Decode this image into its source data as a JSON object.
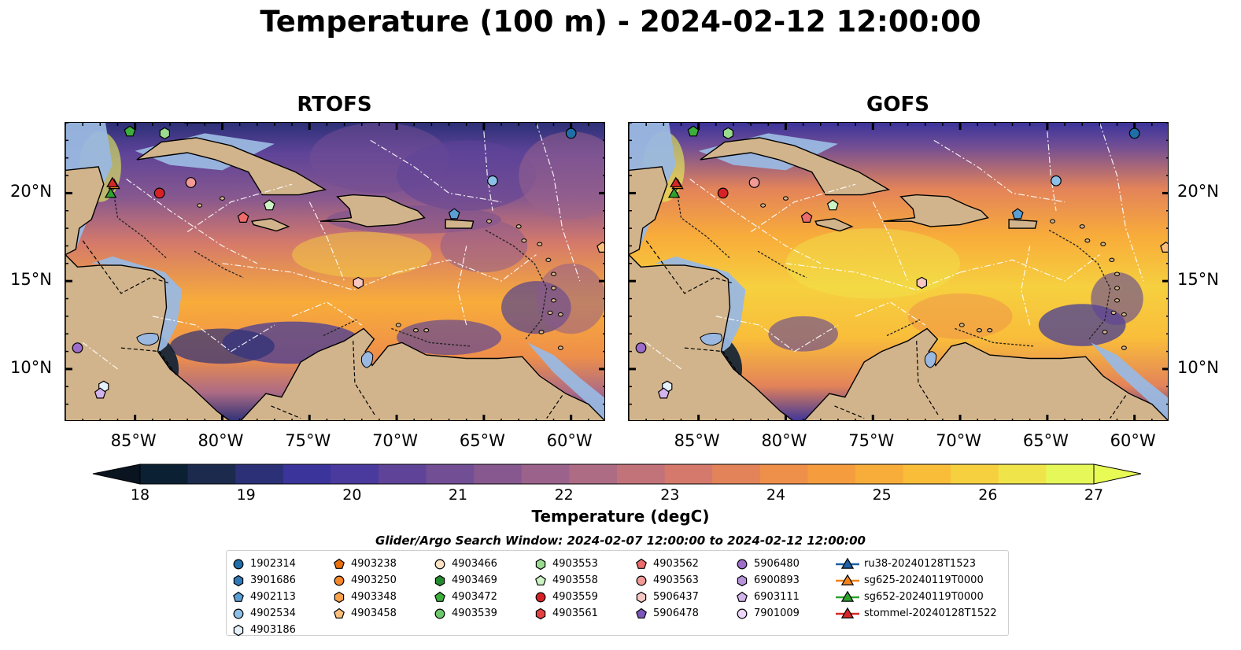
{
  "page": {
    "title": "Temperature (100 m) - 2024-02-12 12:00:00",
    "search_window": "Glider/Argo Search Window: 2024-02-07 12:00:00 to 2024-02-12 12:00:00"
  },
  "chart_data": {
    "type": "heatmap",
    "title": "Temperature (100 m) - 2024-02-12 12:00:00",
    "panels": [
      {
        "name": "RTOFS"
      },
      {
        "name": "GOFS"
      }
    ],
    "x_ticks": [
      "85°W",
      "80°W",
      "75°W",
      "70°W",
      "65°W",
      "60°W"
    ],
    "x_tick_values": [
      -85,
      -80,
      -75,
      -70,
      -65,
      -60
    ],
    "y_ticks": [
      "20°N",
      "15°N",
      "10°N"
    ],
    "y_tick_values": [
      20,
      15,
      10
    ],
    "xlim": [
      -89,
      -58
    ],
    "ylim": [
      7,
      24
    ],
    "colorbar": {
      "label": "Temperature (degC)",
      "vmin": 18,
      "vmax": 27,
      "step": 0.5,
      "ticks": [
        18,
        19,
        20,
        21,
        22,
        23,
        24,
        25,
        26,
        27
      ],
      "extend": "both",
      "colors": [
        "#0c2034",
        "#1c2a4e",
        "#2c3077",
        "#3b349b",
        "#4b3a9e",
        "#5e4398",
        "#724e94",
        "#87588f",
        "#9b638b",
        "#ae6c84",
        "#c27279",
        "#d4796b",
        "#e3835a",
        "#ee8f4a",
        "#f59d3e",
        "#f8ac3a",
        "#f9bd3a",
        "#f6d03f",
        "#f0e44b",
        "#e6f75a"
      ]
    },
    "legend_placement": "bottom-center",
    "series": [
      {
        "name": "1902314",
        "marker": "circle",
        "color": "#1f6ea8",
        "lon": -60.0,
        "lat": 23.4
      },
      {
        "name": "3901686",
        "marker": "hexagon",
        "color": "#2f79b6",
        "lon": null,
        "lat": null
      },
      {
        "name": "4902113",
        "marker": "pentagon",
        "color": "#5a9fd4",
        "lon": -66.7,
        "lat": 18.8
      },
      {
        "name": "4902534",
        "marker": "circle",
        "color": "#8dc0e6",
        "lon": -64.5,
        "lat": 20.7
      },
      {
        "name": "4903186",
        "marker": "hexagon",
        "color": "#e4f1fb",
        "lon": -86.8,
        "lat": 9.0
      },
      {
        "name": "4903238",
        "marker": "pentagon",
        "color": "#e8710e",
        "lon": null,
        "lat": null
      },
      {
        "name": "4903250",
        "marker": "circle",
        "color": "#f4872a",
        "lon": null,
        "lat": null
      },
      {
        "name": "4903348",
        "marker": "hexagon",
        "color": "#f9a24a",
        "lon": null,
        "lat": null
      },
      {
        "name": "4903458",
        "marker": "pentagon",
        "color": "#fbbf7c",
        "lon": -58.2,
        "lat": 16.9
      },
      {
        "name": "4903466",
        "marker": "circle",
        "color": "#fde2c4",
        "lon": null,
        "lat": null
      },
      {
        "name": "4903469",
        "marker": "hexagon",
        "color": "#238b2e",
        "lon": null,
        "lat": null
      },
      {
        "name": "4903472",
        "marker": "pentagon",
        "color": "#3cae3c",
        "lon": -85.3,
        "lat": 23.5
      },
      {
        "name": "4903539",
        "marker": "circle",
        "color": "#6cc86b",
        "lon": null,
        "lat": null
      },
      {
        "name": "4903553",
        "marker": "hexagon",
        "color": "#9adb90",
        "lon": -83.3,
        "lat": 23.4
      },
      {
        "name": "4903558",
        "marker": "pentagon",
        "color": "#cdf3c4",
        "lon": -77.3,
        "lat": 19.3
      },
      {
        "name": "4903559",
        "marker": "circle",
        "color": "#d62226",
        "lon": -83.6,
        "lat": 20.0
      },
      {
        "name": "4903561",
        "marker": "hexagon",
        "color": "#e64142",
        "lon": null,
        "lat": null
      },
      {
        "name": "4903562",
        "marker": "pentagon",
        "color": "#ec6b6b",
        "lon": -78.8,
        "lat": 18.6
      },
      {
        "name": "4903563",
        "marker": "circle",
        "color": "#f29a96",
        "lon": -81.8,
        "lat": 20.6
      },
      {
        "name": "5906437",
        "marker": "hexagon",
        "color": "#f8c7c3",
        "lon": -72.2,
        "lat": 14.9
      },
      {
        "name": "5906478",
        "marker": "pentagon",
        "color": "#7a57b8",
        "lon": null,
        "lat": null
      },
      {
        "name": "5906480",
        "marker": "circle",
        "color": "#9c6dc9",
        "lon": -88.3,
        "lat": 11.2
      },
      {
        "name": "6900893",
        "marker": "hexagon",
        "color": "#b992dc",
        "lon": null,
        "lat": null
      },
      {
        "name": "6903111",
        "marker": "pentagon",
        "color": "#d2b4ec",
        "lon": -87.0,
        "lat": 8.6
      },
      {
        "name": "7901009",
        "marker": "circle",
        "color": "#eed6fb",
        "lon": null,
        "lat": null
      },
      {
        "name": "ru38-20240128T1523",
        "marker": "triangle",
        "color": "#1f5fa5",
        "lon": null,
        "lat": null
      },
      {
        "name": "sg625-20240119T0000",
        "marker": "triangle",
        "color": "#f0841f",
        "lon": -86.2,
        "lat": 20.5
      },
      {
        "name": "sg652-20240119T0000",
        "marker": "triangle",
        "color": "#2fa12f",
        "lon": -86.4,
        "lat": 20.0
      },
      {
        "name": "stommel-20240128T1522",
        "marker": "triangle",
        "color": "#d62728",
        "lon": -86.3,
        "lat": 20.6
      }
    ]
  }
}
